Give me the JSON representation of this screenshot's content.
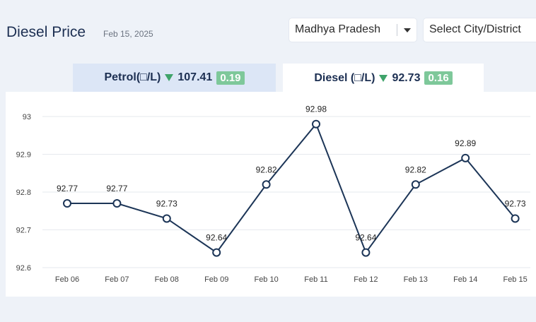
{
  "header": {
    "title": "Diesel Price",
    "date": "Feb 15, 2025"
  },
  "filters": {
    "state": "Madhya Pradesh",
    "city_placeholder": "Select City/District"
  },
  "tabs": [
    {
      "label": "Petrol(□/L)",
      "price": "107.41",
      "change": "0.19",
      "active": false
    },
    {
      "label": "Diesel (□/L)",
      "price": "92.73",
      "change": "0.16",
      "active": true
    }
  ],
  "colors": {
    "line": "#1c3557",
    "trend_down": "#3fa36a",
    "badge": "#7ec89a"
  },
  "chart_data": {
    "type": "line",
    "categories": [
      "Feb 06",
      "Feb 07",
      "Feb 08",
      "Feb 09",
      "Feb 10",
      "Feb 11",
      "Feb 12",
      "Feb 13",
      "Feb 14",
      "Feb 15"
    ],
    "values": [
      92.77,
      92.77,
      92.73,
      92.64,
      92.82,
      92.98,
      92.64,
      92.82,
      92.89,
      92.73
    ],
    "data_labels": [
      "92.77",
      "92.77",
      "92.73",
      "92.64",
      "92.82",
      "92.98",
      "92.64",
      "92.82",
      "92.89",
      "92.73"
    ],
    "yticks": [
      "93",
      "92.9",
      "92.8",
      "92.7",
      "92.6"
    ],
    "ylim": [
      92.6,
      93.0
    ],
    "grid": true,
    "legend": "none"
  }
}
